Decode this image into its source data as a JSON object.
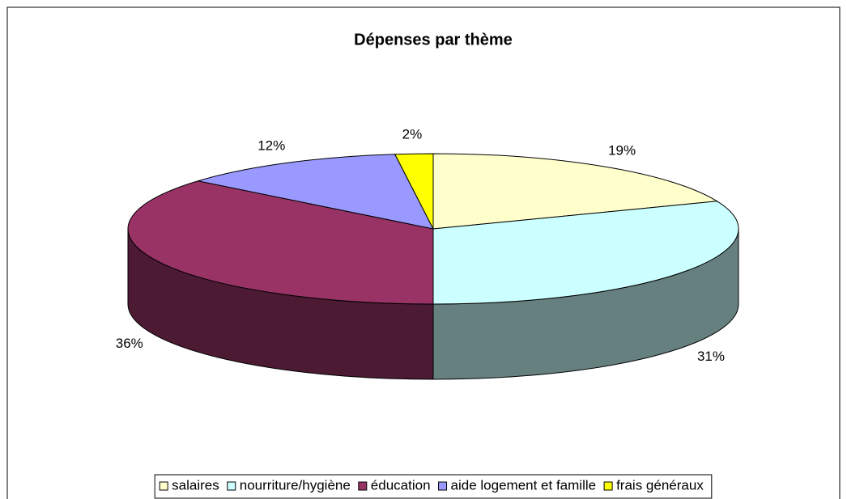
{
  "chart_data": {
    "type": "pie",
    "title": "Dépenses par thème",
    "categories": [
      "salaires",
      "nourriture/hygiène",
      "éducation",
      "aide logement et famille",
      "frais généraux"
    ],
    "values": [
      19,
      31,
      36,
      12,
      2
    ],
    "value_labels": [
      "19%",
      "31%",
      "36%",
      "12%",
      "2%"
    ],
    "colors": [
      "#ffffcc",
      "#ccffff",
      "#993366",
      "#9999ff",
      "#ffff00"
    ],
    "three_d": true,
    "legend": "bottom"
  }
}
